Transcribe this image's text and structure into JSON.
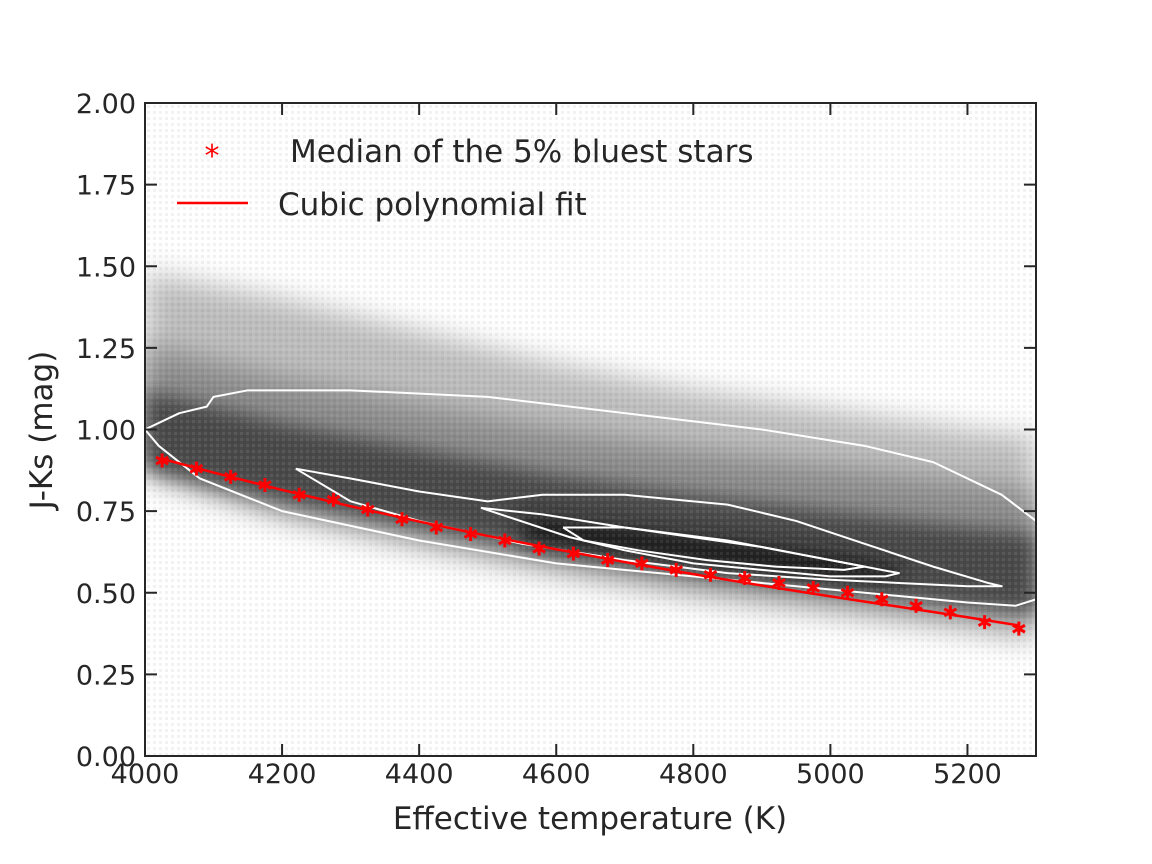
{
  "chart_data": {
    "type": "scatter",
    "xlabel": "Effective temperature (K)",
    "ylabel": "J-Ks (mag)",
    "xlim": [
      4000,
      5300
    ],
    "ylim": [
      0.0,
      2.0
    ],
    "x_ticks": [
      "4000",
      "4200",
      "4400",
      "4600",
      "4800",
      "5000",
      "5200"
    ],
    "y_ticks": [
      "0.00",
      "0.25",
      "0.50",
      "0.75",
      "1.00",
      "1.25",
      "1.50",
      "1.75",
      "2.00"
    ],
    "legend_placement": "upper-left",
    "grid": false,
    "density": {
      "description_type": "2D histogram (grayscale) with white density contours",
      "ridge": {
        "x": [
          4000,
          4200,
          4400,
          4600,
          4800,
          5000,
          5200,
          5300
        ],
        "y": [
          0.98,
          0.88,
          0.8,
          0.72,
          0.66,
          0.61,
          0.56,
          0.54
        ]
      },
      "upper_extent": {
        "x": [
          4000,
          4200,
          4400,
          4600,
          4800,
          5000,
          5200,
          5300
        ],
        "y": [
          1.48,
          1.4,
          1.3,
          1.2,
          1.12,
          1.06,
          1.0,
          0.98
        ]
      },
      "lower_extent": {
        "x": [
          4000,
          4200,
          4400,
          4600,
          4800,
          5000,
          5200,
          5300
        ],
        "y": [
          0.85,
          0.72,
          0.63,
          0.55,
          0.48,
          0.43,
          0.38,
          0.35
        ]
      }
    },
    "contours": [
      {
        "level": "outer",
        "x": [
          4000,
          4050,
          4090,
          4100,
          4150,
          4300,
          4500,
          4700,
          4900,
          5050,
          5150,
          5250,
          5300,
          5300,
          5270,
          5200,
          5100,
          5000,
          4800,
          4600,
          4400,
          4200,
          4080,
          4020,
          4000
        ],
        "y": [
          1.0,
          1.05,
          1.07,
          1.1,
          1.12,
          1.12,
          1.1,
          1.05,
          1.0,
          0.95,
          0.9,
          0.8,
          0.72,
          0.48,
          0.46,
          0.47,
          0.49,
          0.51,
          0.55,
          0.59,
          0.66,
          0.75,
          0.85,
          0.95,
          1.0
        ]
      },
      {
        "level": "middle",
        "x": [
          4220,
          4300,
          4400,
          4500,
          4580,
          4700,
          4850,
          4950,
          5050,
          5150,
          5230,
          5250,
          5200,
          5100,
          5000,
          4850,
          4700,
          4550,
          4400,
          4300,
          4220
        ],
        "y": [
          0.88,
          0.85,
          0.81,
          0.78,
          0.8,
          0.8,
          0.77,
          0.72,
          0.65,
          0.58,
          0.53,
          0.52,
          0.52,
          0.53,
          0.54,
          0.56,
          0.6,
          0.65,
          0.72,
          0.78,
          0.88
        ]
      },
      {
        "level": "inner",
        "x": [
          4490,
          4580,
          4700,
          4850,
          4950,
          5050,
          5100,
          5080,
          5000,
          4900,
          4800,
          4700,
          4620,
          4490
        ],
        "y": [
          0.76,
          0.74,
          0.7,
          0.66,
          0.62,
          0.58,
          0.56,
          0.55,
          0.55,
          0.57,
          0.59,
          0.63,
          0.67,
          0.76
        ]
      },
      {
        "level": "innermost",
        "x": [
          4610,
          4700,
          4800,
          4900,
          5000,
          5050,
          5020,
          4920,
          4820,
          4720,
          4640,
          4610
        ],
        "y": [
          0.7,
          0.7,
          0.67,
          0.64,
          0.6,
          0.58,
          0.57,
          0.58,
          0.6,
          0.63,
          0.66,
          0.7
        ]
      }
    ],
    "series": [
      {
        "name": "Median of the 5% bluest stars",
        "marker": "star",
        "color": "#ff0000",
        "x": [
          4025,
          4075,
          4125,
          4175,
          4225,
          4275,
          4325,
          4375,
          4425,
          4475,
          4525,
          4575,
          4625,
          4675,
          4725,
          4775,
          4825,
          4875,
          4925,
          4975,
          5025,
          5075,
          5125,
          5175,
          5225,
          5275
        ],
        "y": [
          0.905,
          0.88,
          0.855,
          0.83,
          0.8,
          0.785,
          0.755,
          0.725,
          0.7,
          0.68,
          0.66,
          0.635,
          0.62,
          0.6,
          0.59,
          0.57,
          0.555,
          0.545,
          0.53,
          0.515,
          0.5,
          0.48,
          0.46,
          0.44,
          0.41,
          0.39
        ]
      },
      {
        "name": "Cubic polynomial fit",
        "marker": "line",
        "color": "#ff0000",
        "x": [
          4025,
          4100,
          4200,
          4300,
          4400,
          4500,
          4600,
          4700,
          4800,
          4900,
          5000,
          5100,
          5200,
          5275
        ],
        "y": [
          0.91,
          0.868,
          0.815,
          0.765,
          0.718,
          0.674,
          0.633,
          0.594,
          0.557,
          0.522,
          0.489,
          0.457,
          0.425,
          0.4
        ]
      }
    ]
  }
}
